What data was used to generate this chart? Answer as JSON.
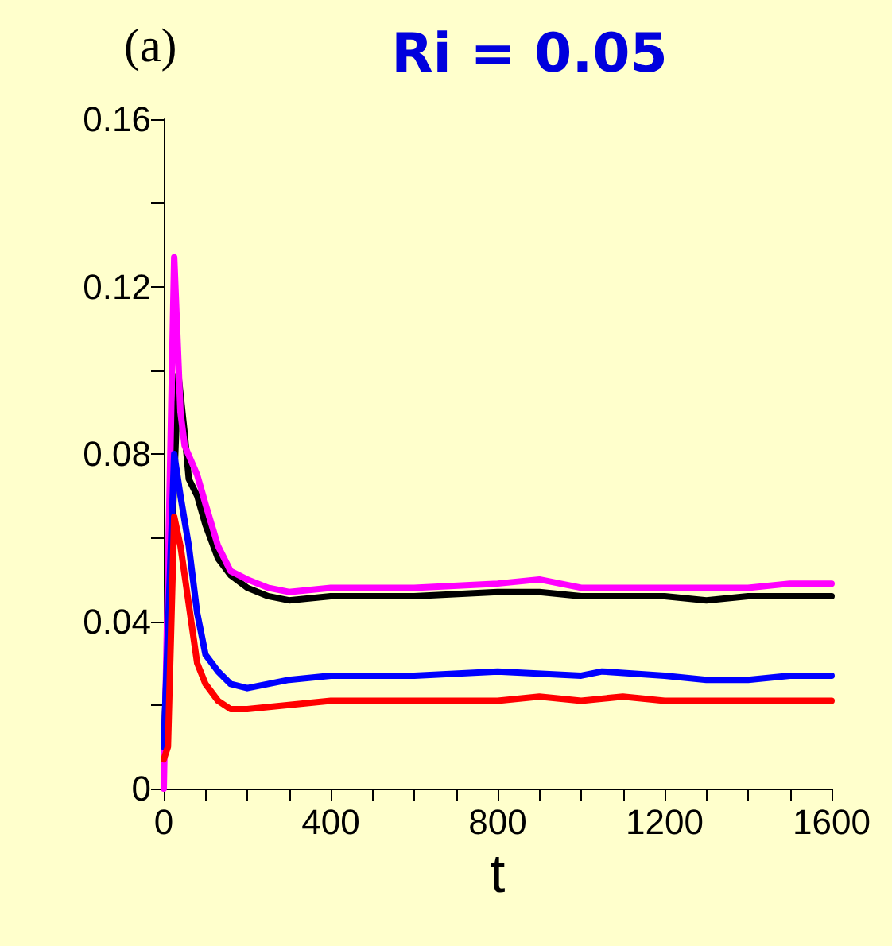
{
  "chart_data": {
    "type": "line",
    "title": "Ri = 0.05",
    "xlabel": "t",
    "annotations": [
      "(a)"
    ],
    "xlim": [
      0,
      1600
    ],
    "ylim": [
      0,
      0.16
    ],
    "xticks": [
      0,
      {
        "value": 100,
        "label": null
      },
      {
        "value": 200,
        "label": null
      },
      {
        "value": 300,
        "label": null
      },
      400,
      {
        "value": 500,
        "label": null
      },
      {
        "value": 600,
        "label": null
      },
      {
        "value": 700,
        "label": null
      },
      800,
      {
        "value": 900,
        "label": null
      },
      {
        "value": 1000,
        "label": null
      },
      {
        "value": 1100,
        "label": null
      },
      1200,
      {
        "value": 1300,
        "label": null
      },
      {
        "value": 1400,
        "label": null
      },
      {
        "value": 1500,
        "label": null
      },
      1600
    ],
    "yticks": [
      0,
      {
        "value": 0.02,
        "label": null
      },
      0.04,
      {
        "value": 0.06,
        "label": null
      },
      0.08,
      {
        "value": 0.1,
        "label": null
      },
      0.12,
      {
        "value": 0.14,
        "label": null
      },
      0.16
    ],
    "marker": "none",
    "line_style": "solid",
    "series": [
      {
        "color": "#000000",
        "x": [
          0,
          35,
          50,
          60,
          80,
          100,
          130,
          160,
          200,
          250,
          300,
          400,
          600,
          800,
          900,
          1000,
          1200,
          1300,
          1400,
          1600
        ],
        "values": [
          0.01,
          0.099,
          0.085,
          0.074,
          0.07,
          0.063,
          0.055,
          0.051,
          0.048,
          0.046,
          0.045,
          0.046,
          0.046,
          0.047,
          0.047,
          0.046,
          0.046,
          0.045,
          0.046,
          0.046
        ]
      },
      {
        "color": "#ff00ff",
        "x": [
          0,
          25,
          40,
          50,
          80,
          100,
          130,
          160,
          200,
          250,
          300,
          400,
          600,
          800,
          900,
          1000,
          1200,
          1400,
          1500,
          1600
        ],
        "values": [
          0,
          0.127,
          0.09,
          0.082,
          0.075,
          0.068,
          0.058,
          0.052,
          0.05,
          0.048,
          0.047,
          0.048,
          0.048,
          0.049,
          0.05,
          0.048,
          0.048,
          0.048,
          0.049,
          0.049
        ]
      },
      {
        "color": "#0000ff",
        "x": [
          0,
          25,
          40,
          60,
          80,
          100,
          130,
          160,
          200,
          300,
          400,
          600,
          800,
          1000,
          1050,
          1200,
          1300,
          1400,
          1500,
          1600
        ],
        "values": [
          0.01,
          0.08,
          0.07,
          0.058,
          0.042,
          0.032,
          0.028,
          0.025,
          0.024,
          0.026,
          0.027,
          0.027,
          0.028,
          0.027,
          0.028,
          0.027,
          0.026,
          0.026,
          0.027,
          0.027
        ]
      },
      {
        "color": "#ff0000",
        "x": [
          0,
          10,
          25,
          40,
          60,
          80,
          100,
          130,
          160,
          200,
          300,
          400,
          600,
          800,
          900,
          1000,
          1100,
          1200,
          1400,
          1600
        ],
        "values": [
          0.007,
          0.01,
          0.065,
          0.058,
          0.044,
          0.03,
          0.025,
          0.021,
          0.019,
          0.019,
          0.02,
          0.021,
          0.021,
          0.021,
          0.022,
          0.021,
          0.022,
          0.021,
          0.021,
          0.021
        ]
      }
    ]
  }
}
